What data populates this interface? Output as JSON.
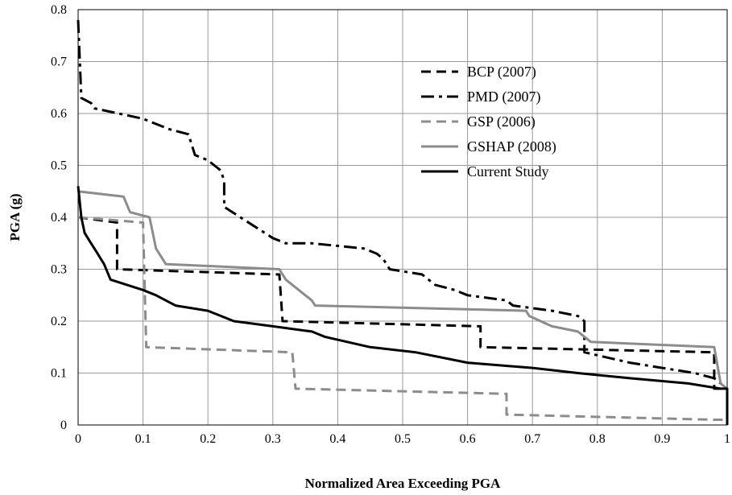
{
  "chart_data": {
    "type": "line",
    "title": "",
    "xlabel": "Normalized Area  Exceeding PGA",
    "ylabel": "PGA (g)",
    "xlim": [
      0,
      1
    ],
    "ylim": [
      0,
      0.8
    ],
    "x_ticks": [
      "0",
      "0.1",
      "0.2",
      "0.3",
      "0.4",
      "0.5",
      "0.6",
      "0.7",
      "0.8",
      "0.9",
      "1"
    ],
    "y_ticks": [
      "0",
      "0.1",
      "0.2",
      "0.3",
      "0.4",
      "0.5",
      "0.6",
      "0.7",
      "0.8"
    ],
    "grid": true,
    "legend_position": "top-right",
    "series": [
      {
        "name": "BCP (2007)",
        "color": "#000000",
        "style": "dashed",
        "points": [
          [
            0,
            0.4
          ],
          [
            0.06,
            0.39
          ],
          [
            0.06,
            0.3
          ],
          [
            0.31,
            0.29
          ],
          [
            0.315,
            0.2
          ],
          [
            0.62,
            0.19
          ],
          [
            0.62,
            0.15
          ],
          [
            0.98,
            0.14
          ],
          [
            0.98,
            0.07
          ],
          [
            1,
            0.07
          ]
        ]
      },
      {
        "name": "PMD (2007)",
        "color": "#000000",
        "style": "dash-dot",
        "points": [
          [
            0,
            0.78
          ],
          [
            0.005,
            0.63
          ],
          [
            0.02,
            0.62
          ],
          [
            0.025,
            0.61
          ],
          [
            0.1,
            0.59
          ],
          [
            0.14,
            0.57
          ],
          [
            0.17,
            0.56
          ],
          [
            0.18,
            0.52
          ],
          [
            0.2,
            0.51
          ],
          [
            0.22,
            0.49
          ],
          [
            0.225,
            0.47
          ],
          [
            0.225,
            0.42
          ],
          [
            0.25,
            0.4
          ],
          [
            0.3,
            0.36
          ],
          [
            0.32,
            0.35
          ],
          [
            0.36,
            0.35
          ],
          [
            0.44,
            0.34
          ],
          [
            0.46,
            0.33
          ],
          [
            0.47,
            0.32
          ],
          [
            0.48,
            0.3
          ],
          [
            0.53,
            0.29
          ],
          [
            0.55,
            0.27
          ],
          [
            0.58,
            0.26
          ],
          [
            0.6,
            0.25
          ],
          [
            0.66,
            0.24
          ],
          [
            0.67,
            0.23
          ],
          [
            0.73,
            0.22
          ],
          [
            0.77,
            0.21
          ],
          [
            0.78,
            0.2
          ],
          [
            0.78,
            0.14
          ],
          [
            0.85,
            0.12
          ],
          [
            0.9,
            0.11
          ],
          [
            0.95,
            0.1
          ],
          [
            0.98,
            0.09
          ],
          [
            1,
            0.07
          ]
        ]
      },
      {
        "name": "GSP (2006)",
        "color": "#8c8c8c",
        "style": "dashed",
        "points": [
          [
            0,
            0.4
          ],
          [
            0.1,
            0.39
          ],
          [
            0.105,
            0.15
          ],
          [
            0.33,
            0.14
          ],
          [
            0.335,
            0.07
          ],
          [
            0.66,
            0.06
          ],
          [
            0.66,
            0.02
          ],
          [
            0.98,
            0.01
          ],
          [
            1,
            0.01
          ]
        ]
      },
      {
        "name": "GSHAP (2008)",
        "color": "#8c8c8c",
        "style": "solid",
        "points": [
          [
            0,
            0.45
          ],
          [
            0.07,
            0.44
          ],
          [
            0.08,
            0.41
          ],
          [
            0.11,
            0.4
          ],
          [
            0.12,
            0.34
          ],
          [
            0.13,
            0.32
          ],
          [
            0.135,
            0.31
          ],
          [
            0.31,
            0.3
          ],
          [
            0.32,
            0.28
          ],
          [
            0.34,
            0.26
          ],
          [
            0.35,
            0.25
          ],
          [
            0.36,
            0.24
          ],
          [
            0.365,
            0.23
          ],
          [
            0.69,
            0.22
          ],
          [
            0.695,
            0.21
          ],
          [
            0.73,
            0.19
          ],
          [
            0.77,
            0.18
          ],
          [
            0.79,
            0.16
          ],
          [
            0.98,
            0.15
          ],
          [
            0.99,
            0.08
          ],
          [
            1,
            0.07
          ]
        ]
      },
      {
        "name": "Current Study",
        "color": "#000000",
        "style": "solid",
        "points": [
          [
            0,
            0.46
          ],
          [
            0.005,
            0.4
          ],
          [
            0.01,
            0.37
          ],
          [
            0.02,
            0.35
          ],
          [
            0.03,
            0.33
          ],
          [
            0.035,
            0.32
          ],
          [
            0.04,
            0.31
          ],
          [
            0.05,
            0.28
          ],
          [
            0.1,
            0.26
          ],
          [
            0.12,
            0.25
          ],
          [
            0.15,
            0.23
          ],
          [
            0.2,
            0.22
          ],
          [
            0.24,
            0.2
          ],
          [
            0.3,
            0.19
          ],
          [
            0.36,
            0.18
          ],
          [
            0.38,
            0.17
          ],
          [
            0.45,
            0.15
          ],
          [
            0.52,
            0.14
          ],
          [
            0.6,
            0.12
          ],
          [
            0.7,
            0.11
          ],
          [
            0.77,
            0.1
          ],
          [
            0.85,
            0.09
          ],
          [
            0.94,
            0.08
          ],
          [
            0.99,
            0.07
          ],
          [
            1,
            0.07
          ],
          [
            1,
            0
          ]
        ]
      }
    ]
  }
}
